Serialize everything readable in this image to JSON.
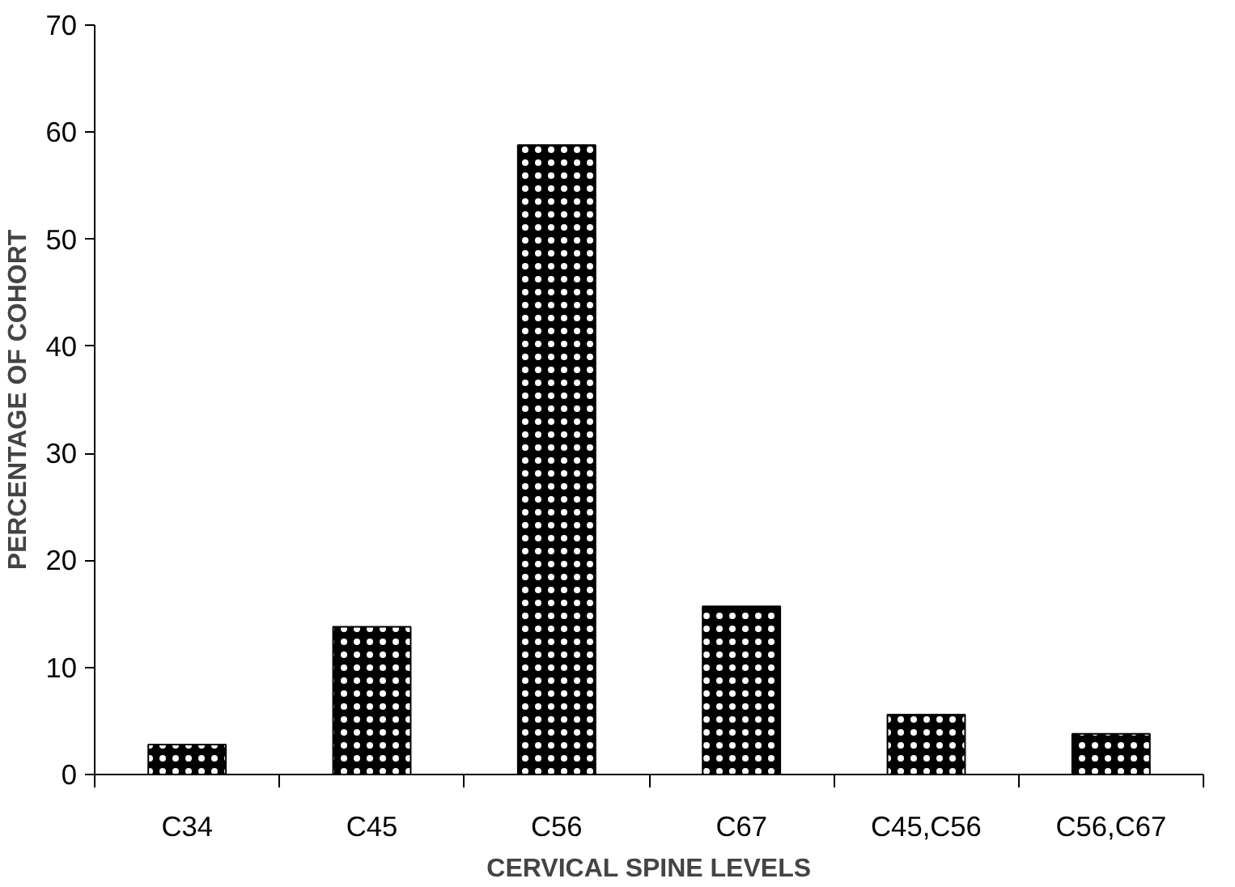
{
  "chart_data": {
    "type": "bar",
    "xlabel": "CERVICAL SPINE LEVELS",
    "ylabel": "PERCENTAGE OF COHORT",
    "categories": [
      "C34",
      "C45",
      "C56",
      "C67",
      "C45,C56",
      "C56,C67"
    ],
    "values": [
      2.8,
      13.8,
      58.8,
      15.7,
      5.6,
      3.8
    ],
    "color": "#000000",
    "ylim": [
      0,
      70
    ],
    "yticks": [
      0,
      10,
      20,
      30,
      40,
      50,
      60,
      70
    ],
    "grid": false
  }
}
